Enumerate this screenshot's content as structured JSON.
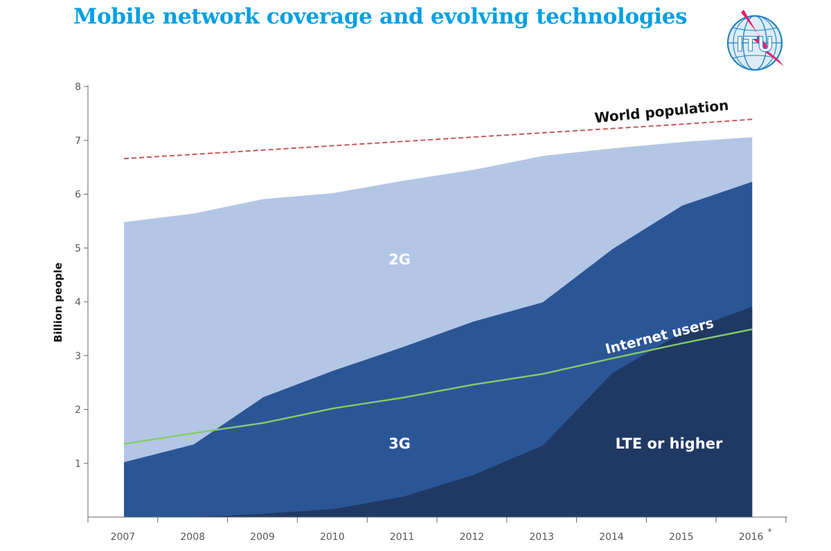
{
  "chart_data": {
    "type": "area",
    "title": "Mobile network coverage and evolving technologies",
    "xlabel": "",
    "ylabel": "Billion people",
    "ylim": [
      0,
      8
    ],
    "yticks": [
      "1",
      "2",
      "3",
      "4",
      "5",
      "6",
      "7",
      "8"
    ],
    "categories": [
      "2007",
      "2008",
      "2009",
      "2010",
      "2011",
      "2012",
      "2013",
      "2014",
      "2015",
      "2016"
    ],
    "last_category_footnote": "*",
    "area_series": [
      {
        "name": "2G",
        "color": "#b3c6e6",
        "values": [
          5.48,
          5.64,
          5.91,
          6.02,
          6.25,
          6.45,
          6.71,
          6.85,
          6.97,
          7.06
        ]
      },
      {
        "name": "3G",
        "color": "#2b5696",
        "values": [
          1.02,
          1.35,
          2.23,
          2.72,
          3.16,
          3.63,
          3.99,
          4.98,
          5.79,
          6.23
        ]
      },
      {
        "name": "LTE or higher",
        "color": "#203964",
        "values": [
          0.0,
          0.0,
          0.06,
          0.15,
          0.38,
          0.78,
          1.33,
          2.68,
          3.43,
          3.91
        ]
      }
    ],
    "line_series": [
      {
        "name": "World population",
        "color": "#c95656",
        "style": "dashed",
        "values": [
          6.66,
          6.74,
          6.82,
          6.9,
          6.98,
          7.06,
          7.14,
          7.22,
          7.3,
          7.39
        ]
      },
      {
        "name": "Internet users",
        "color": "#86cc66",
        "style": "solid",
        "values": [
          1.36,
          1.56,
          1.75,
          2.02,
          2.22,
          2.46,
          2.66,
          2.95,
          3.23,
          3.49
        ]
      }
    ],
    "labels": {
      "area_2g": "2G",
      "area_3g": "3G",
      "area_lte": "LTE or higher",
      "world_population": "World population",
      "internet_users": "Internet users"
    }
  },
  "logo": {
    "text": "ITU"
  }
}
